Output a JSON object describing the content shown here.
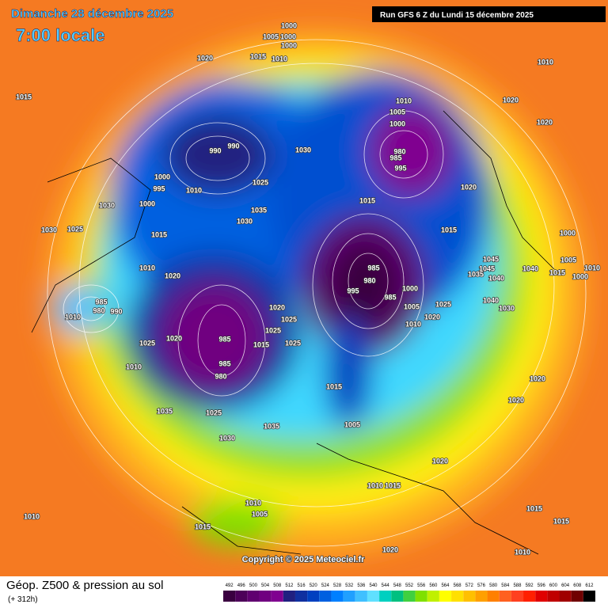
{
  "header": {
    "date": "Dimanche 28 décembre 2025",
    "time": "7:00 locale",
    "run": "Run GFS 6 Z du Lundi 15 décembre 2025"
  },
  "map": {
    "isobar_labels": [
      1000,
      1005,
      1000,
      1000,
      1020,
      1015,
      1010,
      1010,
      1015,
      1010,
      1020,
      1005,
      1000,
      1020,
      990,
      990,
      1030,
      980,
      985,
      995,
      1000,
      1025,
      1020,
      995,
      1010,
      1000,
      1030,
      1015,
      1035,
      1030,
      1025,
      1030,
      1015,
      1015,
      1000,
      1045,
      985,
      1005,
      1040,
      1010,
      1035,
      1020,
      1010,
      980,
      1015,
      1000,
      1045,
      1040,
      995,
      1000,
      985,
      985,
      1020,
      1005,
      1025,
      980,
      990,
      1040,
      1030,
      1010,
      1025,
      1020,
      1010,
      1025,
      1020,
      985,
      1015,
      1025,
      1025,
      1010,
      985,
      980,
      1020,
      1015,
      1020,
      1035,
      1025,
      1005,
      1035,
      1030,
      1020,
      1010,
      1015,
      1010,
      1005,
      1015,
      1010,
      1015,
      1015,
      1010,
      1020
    ],
    "copyright": "Copyright © 2025 Meteociel.fr"
  },
  "footer": {
    "title": "Géop. Z500 & pression au sol",
    "lead": "(+ 312h)"
  },
  "legend": {
    "values": [
      492,
      496,
      500,
      504,
      508,
      512,
      516,
      520,
      524,
      528,
      532,
      536,
      540,
      544,
      548,
      552,
      556,
      560,
      564,
      568,
      572,
      576,
      580,
      584,
      588,
      592,
      596,
      600,
      604,
      608,
      612
    ],
    "colors": [
      "#3a0040",
      "#4d0059",
      "#600070",
      "#700080",
      "#800090",
      "#202080",
      "#1030a0",
      "#0040c0",
      "#0060e0",
      "#0080ff",
      "#20a0ff",
      "#40c0ff",
      "#60e0ff",
      "#00d0c0",
      "#00c080",
      "#40d040",
      "#80e000",
      "#c0f000",
      "#ffff00",
      "#ffe000",
      "#ffc000",
      "#ffa000",
      "#ff8000",
      "#ff6020",
      "#ff4020",
      "#ff2000",
      "#e00000",
      "#c00000",
      "#a00000",
      "#700000",
      "#000000"
    ]
  }
}
